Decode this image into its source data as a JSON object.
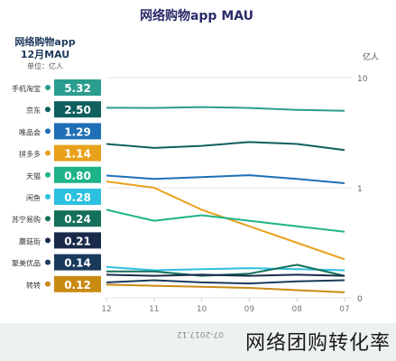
{
  "watermark": "网络团购转化率",
  "source_text": "07-2017.12",
  "chart_data": {
    "type": "line",
    "title": "网络购物app MAU",
    "legend_title": "网络购物app",
    "legend_subtitle": "12月MAU",
    "legend_unit": "单位：亿人",
    "y_axis_unit": "亿人",
    "ytick_labels": [
      "0",
      "1",
      "10"
    ],
    "x": [
      "07",
      "08",
      "09",
      "10",
      "11",
      "12"
    ],
    "x_label_order_left_to_right": [
      "12",
      "11",
      "10",
      "09",
      "08",
      "07"
    ],
    "series": [
      {
        "name": "手机淘宝",
        "value_label": "5.32",
        "color": "#2a9d8f",
        "values": [
          5.0,
          5.1,
          5.3,
          5.4,
          5.3,
          5.32
        ]
      },
      {
        "name": "京东",
        "value_label": "2.50",
        "color": "#0f5f5f",
        "values": [
          2.2,
          2.5,
          2.6,
          2.4,
          2.3,
          2.5
        ]
      },
      {
        "name": "唯品会",
        "value_label": "1.29",
        "color": "#1e6fb5",
        "values": [
          1.1,
          1.2,
          1.3,
          1.25,
          1.2,
          1.29
        ]
      },
      {
        "name": "拼多多",
        "value_label": "1.14",
        "color": "#e8a11b",
        "values": [
          0.35,
          0.5,
          0.65,
          0.8,
          1.0,
          1.14
        ]
      },
      {
        "name": "天猫",
        "value_label": "0.80",
        "color": "#1fb38a",
        "values": [
          0.6,
          0.65,
          0.7,
          0.75,
          0.7,
          0.8
        ]
      },
      {
        "name": "闲鱼",
        "value_label": "0.28",
        "color": "#2cc0e0",
        "values": [
          0.25,
          0.26,
          0.27,
          0.26,
          0.25,
          0.28
        ]
      },
      {
        "name": "苏宁易购",
        "value_label": "0.24",
        "color": "#14705a",
        "values": [
          0.2,
          0.3,
          0.22,
          0.2,
          0.24,
          0.24
        ]
      },
      {
        "name": "蘑菇街",
        "value_label": "0.21",
        "color": "#1a2b4a",
        "values": [
          0.2,
          0.21,
          0.2,
          0.21,
          0.2,
          0.21
        ]
      },
      {
        "name": "聚美优品",
        "value_label": "0.14",
        "color": "#1a3a5c",
        "values": [
          0.16,
          0.15,
          0.13,
          0.14,
          0.16,
          0.14
        ]
      },
      {
        "name": "转转",
        "value_label": "0.12",
        "color": "#c98a12",
        "values": [
          0.05,
          0.07,
          0.09,
          0.1,
          0.11,
          0.12
        ]
      }
    ]
  }
}
